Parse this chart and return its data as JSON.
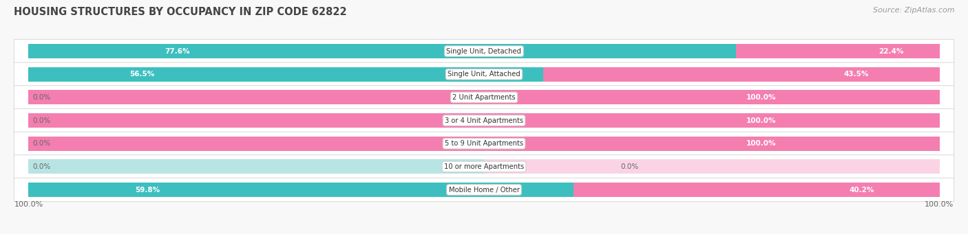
{
  "title": "HOUSING STRUCTURES BY OCCUPANCY IN ZIP CODE 62822",
  "source": "Source: ZipAtlas.com",
  "categories": [
    "Single Unit, Detached",
    "Single Unit, Attached",
    "2 Unit Apartments",
    "3 or 4 Unit Apartments",
    "5 to 9 Unit Apartments",
    "10 or more Apartments",
    "Mobile Home / Other"
  ],
  "owner_pct": [
    77.6,
    56.5,
    0.0,
    0.0,
    0.0,
    0.0,
    59.8
  ],
  "renter_pct": [
    22.4,
    43.5,
    100.0,
    100.0,
    100.0,
    0.0,
    40.2
  ],
  "owner_color": "#3dbfbf",
  "renter_color": "#f47eb0",
  "owner_light": "#b8e4e4",
  "renter_light": "#fad4e5",
  "bg_row": "#ffffff",
  "title_color": "#444444",
  "source_color": "#999999",
  "label_dark": "#333333",
  "label_white": "#ffffff"
}
